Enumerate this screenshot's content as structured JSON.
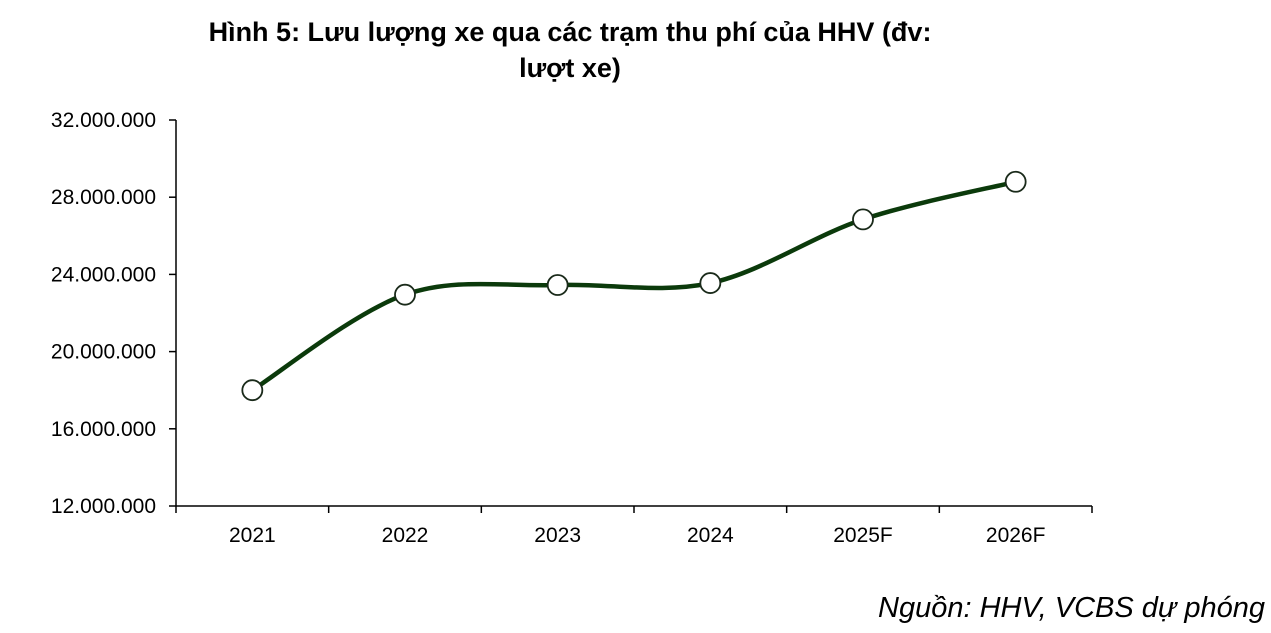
{
  "chart_data": {
    "type": "line",
    "title_lines": [
      "Hình 5: Lưu lượng xe qua các trạm thu phí của HHV (đv:",
      "lượt xe)"
    ],
    "categories": [
      "2021",
      "2022",
      "2023",
      "2024",
      "2025F",
      "2026F"
    ],
    "series": [
      {
        "values": [
          18000000,
          22950000,
          23450000,
          23550000,
          26850000,
          28800000
        ]
      }
    ],
    "y_ticks": [
      "32.000.000",
      "28.000.000",
      "24.000.000",
      "20.000.000",
      "16.000.000",
      "12.000.000"
    ],
    "ylim": [
      12000000,
      32000000
    ],
    "grid": false,
    "legend": "none",
    "line_color": "#0b3a0b",
    "marker_fill": "#ffffff",
    "axis_color": "#000000",
    "source": "Nguồn: HHV, VCBS dự phóng"
  }
}
